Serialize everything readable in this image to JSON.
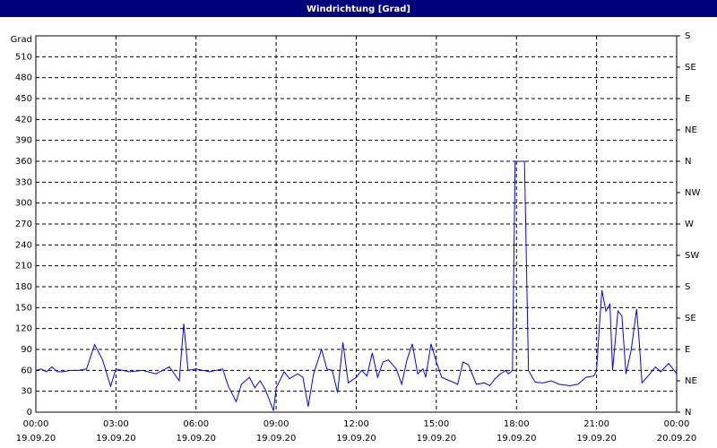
{
  "chart_data": {
    "type": "line",
    "title": "Windrichtung [Grad]",
    "ylabel": "Grad",
    "color": "#0000ff",
    "grid": true,
    "x": [
      0,
      0.2,
      0.4,
      0.6,
      0.8,
      1.0,
      1.3,
      1.6,
      1.9,
      2.2,
      2.5,
      2.8,
      3.0,
      3.5,
      4.0,
      4.5,
      5.0,
      5.37,
      5.54,
      5.7,
      6.0,
      6.5,
      7.0,
      7.2,
      7.5,
      7.7,
      8.0,
      8.2,
      8.4,
      8.6,
      8.9,
      9.0,
      9.3,
      9.5,
      9.8,
      10.0,
      10.2,
      10.4,
      10.7,
      10.9,
      11.1,
      11.3,
      11.5,
      11.7,
      12.0,
      12.2,
      12.4,
      12.6,
      12.8,
      13.0,
      13.2,
      13.5,
      13.7,
      13.9,
      14.1,
      14.3,
      14.5,
      14.6,
      14.8,
      15.0,
      15.2,
      15.5,
      15.8,
      16.0,
      16.2,
      16.5,
      16.8,
      17.0,
      17.2,
      17.4,
      17.6,
      17.7,
      17.85,
      17.95,
      18.3,
      18.45,
      18.7,
      19.0,
      19.3,
      19.6,
      20.0,
      20.3,
      20.6,
      20.9,
      21.0,
      21.1,
      21.2,
      21.35,
      21.5,
      21.6,
      21.8,
      21.95,
      22.1,
      22.3,
      22.5,
      22.6,
      22.7,
      23.0,
      23.2,
      23.4,
      23.7,
      24.0
    ],
    "values": [
      60,
      62,
      58,
      65,
      58,
      58,
      60,
      60,
      62,
      97,
      75,
      37,
      62,
      58,
      60,
      55,
      65,
      45,
      127,
      60,
      62,
      58,
      62,
      38,
      15,
      40,
      50,
      35,
      45,
      32,
      2,
      35,
      58,
      48,
      55,
      50,
      8,
      55,
      90,
      62,
      60,
      28,
      100,
      42,
      50,
      60,
      52,
      85,
      50,
      72,
      75,
      62,
      40,
      75,
      98,
      55,
      62,
      50,
      98,
      72,
      50,
      45,
      40,
      72,
      68,
      40,
      42,
      38,
      48,
      55,
      60,
      55,
      60,
      360,
      360,
      60,
      43,
      42,
      45,
      40,
      38,
      40,
      50,
      52,
      60,
      120,
      175,
      145,
      155,
      60,
      145,
      138,
      55,
      90,
      148,
      100,
      42,
      55,
      65,
      58,
      70,
      55
    ],
    "xlim": [
      0,
      24
    ],
    "xticks": [
      {
        "value": 0,
        "label": "00:00",
        "sublabel": "19.09.20"
      },
      {
        "value": 3,
        "label": "03:00",
        "sublabel": "19.09.20"
      },
      {
        "value": 6,
        "label": "06:00",
        "sublabel": "19.09.20"
      },
      {
        "value": 9,
        "label": "09:00",
        "sublabel": "19.09.20"
      },
      {
        "value": 12,
        "label": "12:00",
        "sublabel": "19.09.20"
      },
      {
        "value": 15,
        "label": "15:00",
        "sublabel": "19.09.20"
      },
      {
        "value": 18,
        "label": "18:00",
        "sublabel": "19.09.20"
      },
      {
        "value": 21,
        "label": "21:00",
        "sublabel": "19.09.20"
      },
      {
        "value": 24,
        "label": "00:00",
        "sublabel": "20.09.20"
      }
    ],
    "ylim": [
      0,
      540
    ],
    "yticks": [
      0,
      30,
      60,
      90,
      120,
      150,
      180,
      210,
      240,
      270,
      300,
      330,
      360,
      390,
      420,
      450,
      480,
      510
    ],
    "y2lim": [
      0,
      540
    ],
    "y2ticks": [
      {
        "value": 0,
        "label": "N"
      },
      {
        "value": 45,
        "label": "NE"
      },
      {
        "value": 90,
        "label": "E"
      },
      {
        "value": 135,
        "label": "SE"
      },
      {
        "value": 180,
        "label": "S"
      },
      {
        "value": 225,
        "label": "SW"
      },
      {
        "value": 270,
        "label": "W"
      },
      {
        "value": 315,
        "label": "NW"
      },
      {
        "value": 360,
        "label": "N"
      },
      {
        "value": 405,
        "label": "NE"
      },
      {
        "value": 450,
        "label": "E"
      },
      {
        "value": 495,
        "label": "SE"
      },
      {
        "value": 540,
        "label": "S"
      }
    ]
  }
}
